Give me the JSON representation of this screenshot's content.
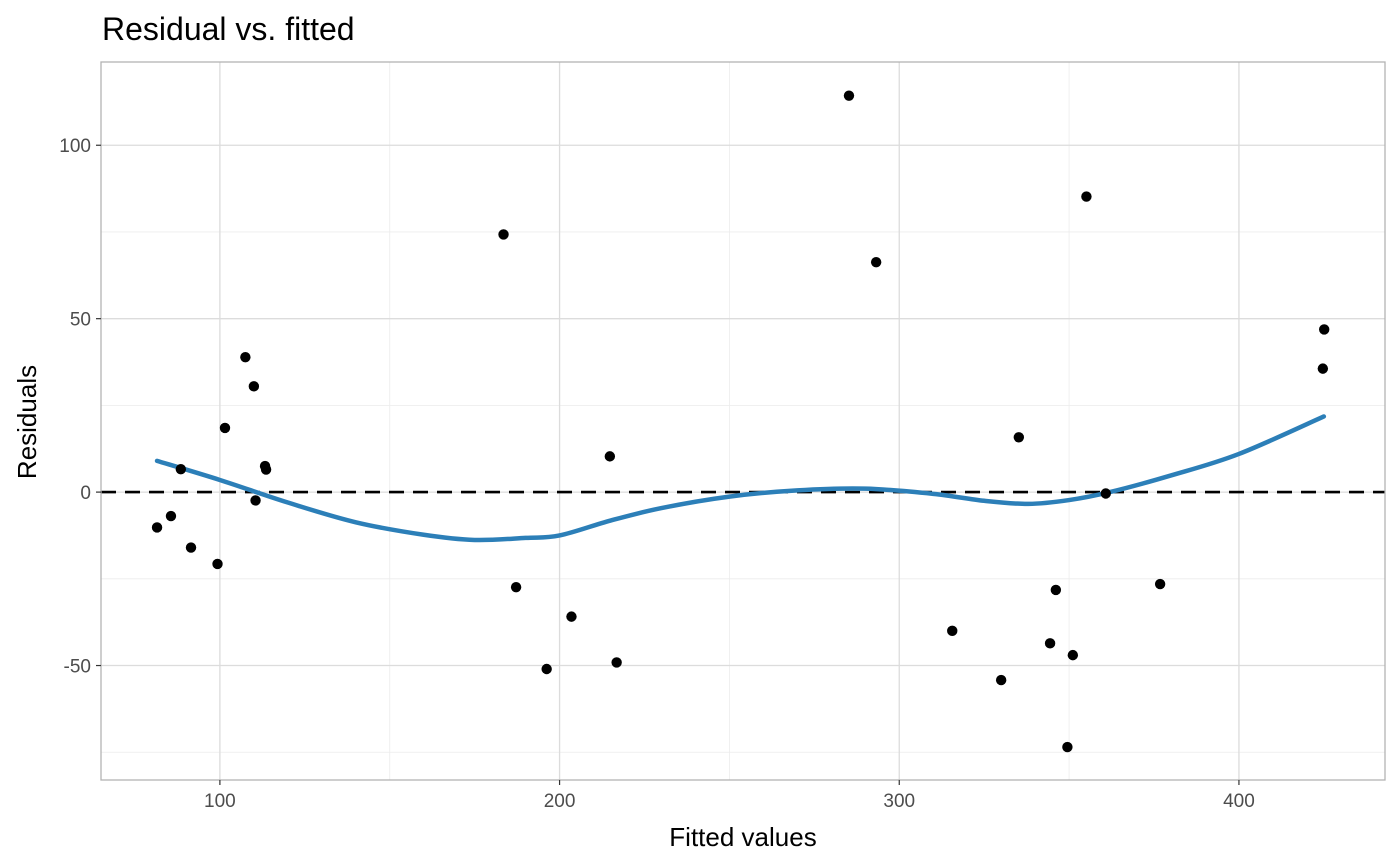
{
  "chart_data": {
    "type": "scatter",
    "title": "Residual vs. fitted",
    "xlabel": "Fitted values",
    "ylabel": "Residuals",
    "xlim": [
      65,
      443
    ],
    "ylim": [
      -83,
      124
    ],
    "x_major_ticks": [
      100,
      200,
      300,
      400
    ],
    "x_minor_ticks": [
      150,
      250,
      350
    ],
    "y_major_ticks": [
      -50,
      0,
      50,
      100
    ],
    "y_minor_ticks": [
      -75,
      -25,
      25,
      75
    ],
    "x_tick_labels": [
      "100",
      "200",
      "300",
      "400"
    ],
    "y_tick_labels": [
      "-50",
      "0",
      "50",
      "100"
    ],
    "grid": true,
    "reference_line": {
      "y": 0,
      "style": "dashed",
      "color": "#000000"
    },
    "points": [
      {
        "x": 81.5,
        "y": -10.2
      },
      {
        "x": 85.6,
        "y": -6.9
      },
      {
        "x": 88.5,
        "y": 6.6
      },
      {
        "x": 91.5,
        "y": -16.0
      },
      {
        "x": 99.3,
        "y": -20.7
      },
      {
        "x": 101.5,
        "y": 18.5
      },
      {
        "x": 107.5,
        "y": 38.9
      },
      {
        "x": 110.0,
        "y": 30.5
      },
      {
        "x": 110.5,
        "y": -2.4
      },
      {
        "x": 113.3,
        "y": 7.5
      },
      {
        "x": 113.6,
        "y": 6.5
      },
      {
        "x": 183.5,
        "y": 74.3
      },
      {
        "x": 187.2,
        "y": -27.4
      },
      {
        "x": 196.2,
        "y": -51.0
      },
      {
        "x": 203.5,
        "y": -35.9
      },
      {
        "x": 214.8,
        "y": 10.3
      },
      {
        "x": 216.8,
        "y": -49.1
      },
      {
        "x": 285.2,
        "y": 114.3
      },
      {
        "x": 293.2,
        "y": 66.3
      },
      {
        "x": 315.6,
        "y": -40.0
      },
      {
        "x": 330.0,
        "y": -54.2
      },
      {
        "x": 335.2,
        "y": 15.8
      },
      {
        "x": 344.4,
        "y": -43.6
      },
      {
        "x": 346.1,
        "y": -28.2
      },
      {
        "x": 349.5,
        "y": -73.5
      },
      {
        "x": 351.1,
        "y": -47.0
      },
      {
        "x": 355.1,
        "y": 85.2
      },
      {
        "x": 360.8,
        "y": -0.4
      },
      {
        "x": 376.8,
        "y": -26.5
      },
      {
        "x": 424.7,
        "y": 35.6
      },
      {
        "x": 425.1,
        "y": 46.9
      }
    ],
    "smooth_line": {
      "color": "#2c7fb8",
      "points": [
        {
          "x": 81.5,
          "y": 9.0
        },
        {
          "x": 100,
          "y": 3.5
        },
        {
          "x": 120,
          "y": -3.0
        },
        {
          "x": 140,
          "y": -8.7
        },
        {
          "x": 160,
          "y": -12.3
        },
        {
          "x": 175,
          "y": -13.8
        },
        {
          "x": 190,
          "y": -13.2
        },
        {
          "x": 200,
          "y": -12.5
        },
        {
          "x": 215,
          "y": -8.2
        },
        {
          "x": 230,
          "y": -4.6
        },
        {
          "x": 250,
          "y": -1.3
        },
        {
          "x": 270,
          "y": 0.5
        },
        {
          "x": 290,
          "y": 1.0
        },
        {
          "x": 310,
          "y": -0.5
        },
        {
          "x": 325,
          "y": -2.5
        },
        {
          "x": 338,
          "y": -3.4
        },
        {
          "x": 350,
          "y": -2.3
        },
        {
          "x": 362,
          "y": 0.0
        },
        {
          "x": 380,
          "y": 4.8
        },
        {
          "x": 400,
          "y": 11.0
        },
        {
          "x": 425,
          "y": 21.8
        }
      ]
    },
    "colors": {
      "points": "#000000",
      "smooth": "#2c7fb8",
      "panel_border": "#b3b3b3"
    }
  }
}
